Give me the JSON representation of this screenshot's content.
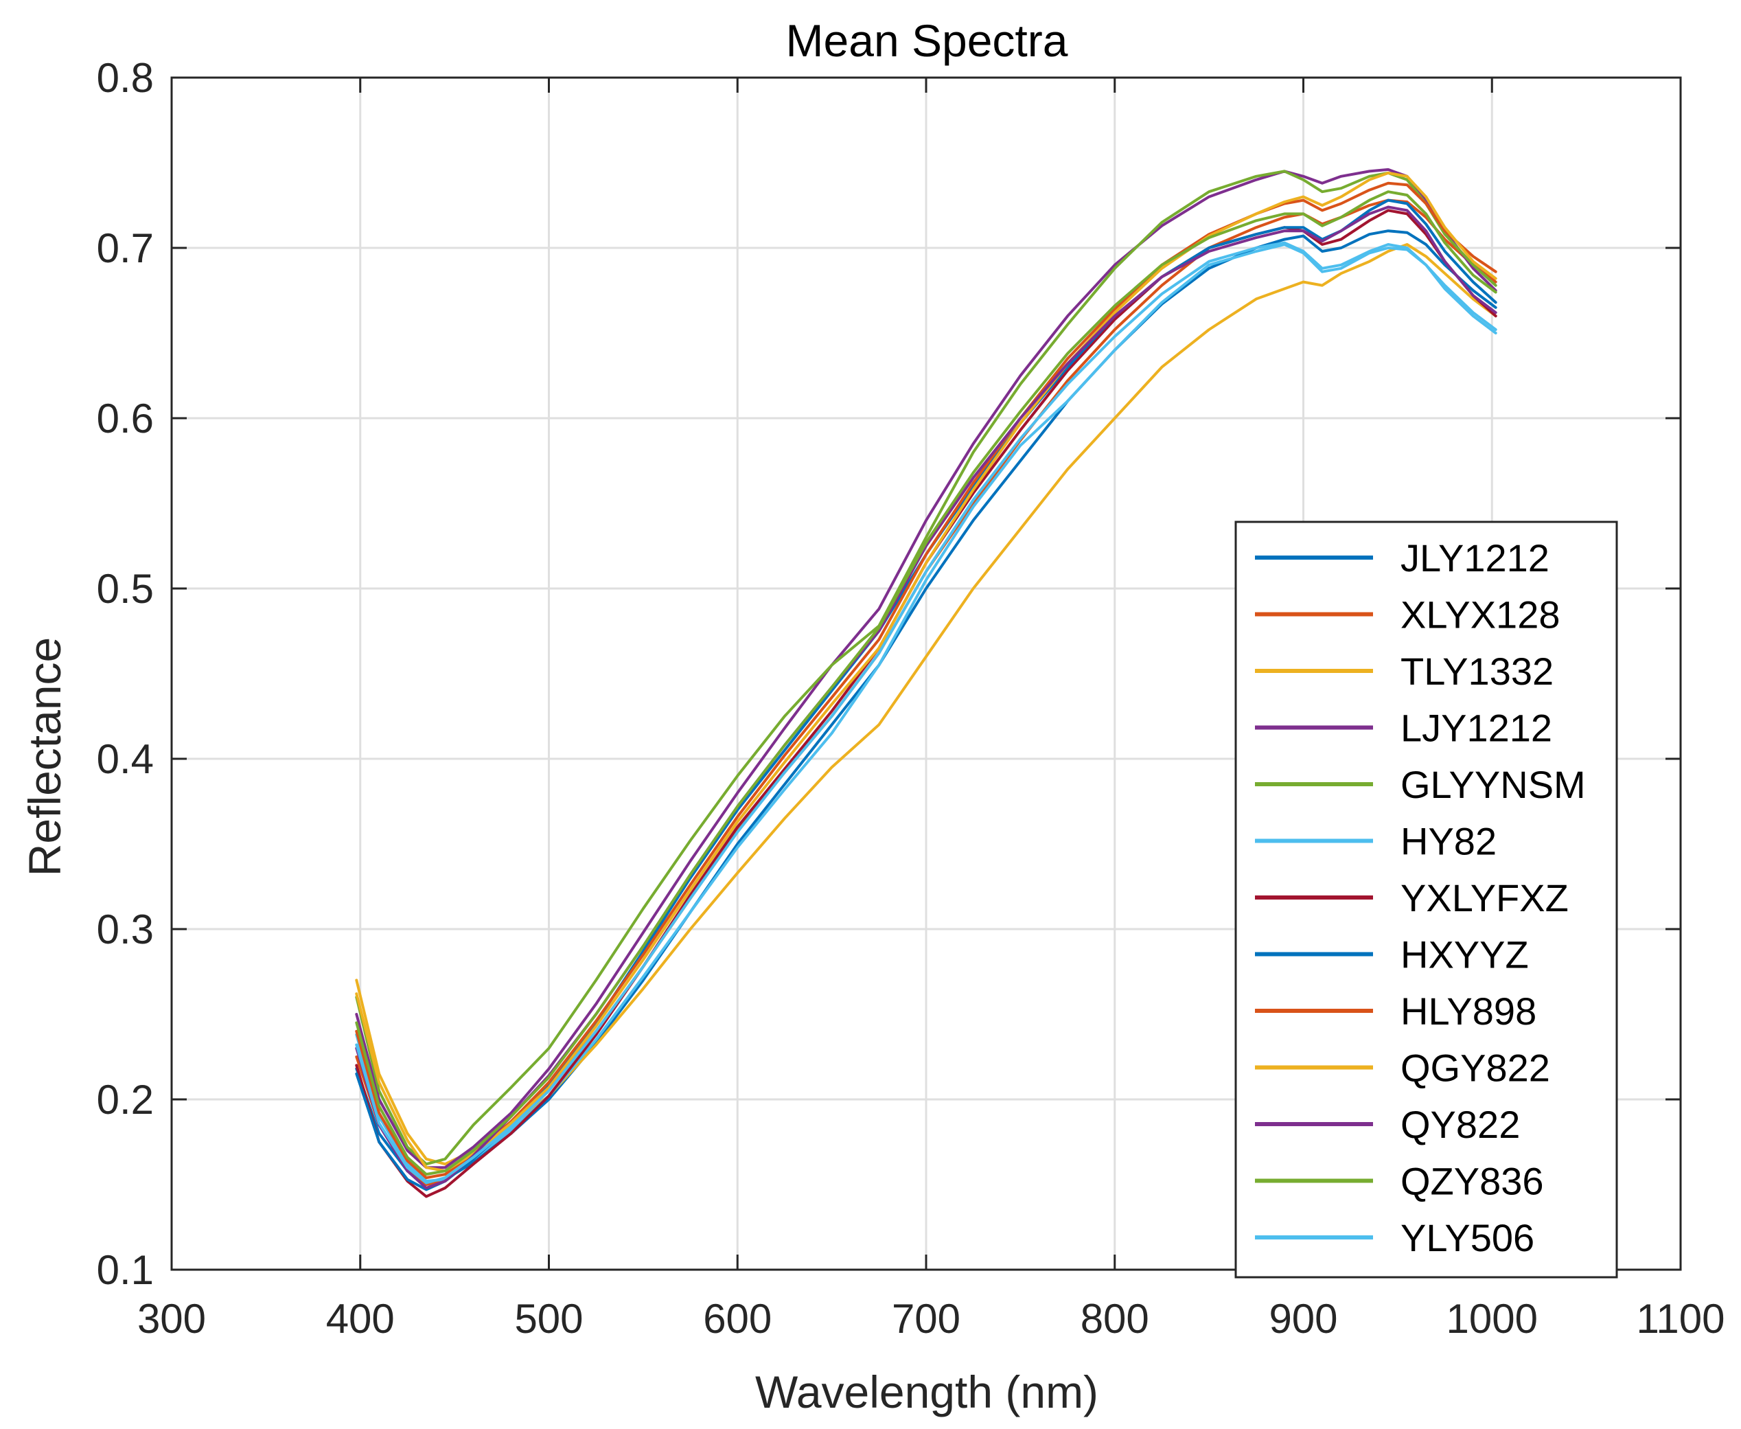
{
  "chart_data": {
    "type": "line",
    "title": "Mean Spectra",
    "xlabel": "Wavelength (nm)",
    "ylabel": "Reflectance",
    "xlim": [
      300,
      1100
    ],
    "ylim": [
      0.1,
      0.8
    ],
    "xticks": [
      300,
      400,
      500,
      600,
      700,
      800,
      900,
      1000,
      1100
    ],
    "xtick_labels": [
      "300",
      "400",
      "500",
      "600",
      "700",
      "800",
      "900",
      "1000",
      "1100"
    ],
    "yticks": [
      0.1,
      0.2,
      0.3,
      0.4,
      0.5,
      0.6,
      0.7,
      0.8
    ],
    "ytick_labels": [
      "0.1",
      "0.2",
      "0.3",
      "0.4",
      "0.5",
      "0.6",
      "0.7",
      "0.8"
    ],
    "grid": true,
    "legend_position": "right",
    "x": [
      398,
      410,
      425,
      435,
      445,
      460,
      480,
      500,
      525,
      550,
      575,
      600,
      625,
      650,
      675,
      700,
      725,
      750,
      775,
      800,
      825,
      850,
      875,
      890,
      900,
      910,
      920,
      935,
      945,
      955,
      965,
      975,
      990,
      1002
    ],
    "series": [
      {
        "name": "JLY1212",
        "color": "#0072BD",
        "values": [
          0.218,
          0.18,
          0.158,
          0.15,
          0.153,
          0.163,
          0.18,
          0.2,
          0.233,
          0.27,
          0.31,
          0.35,
          0.385,
          0.42,
          0.455,
          0.5,
          0.54,
          0.575,
          0.61,
          0.64,
          0.667,
          0.688,
          0.7,
          0.705,
          0.707,
          0.698,
          0.7,
          0.708,
          0.71,
          0.709,
          0.702,
          0.69,
          0.675,
          0.665
        ]
      },
      {
        "name": "XLYX128",
        "color": "#D95319",
        "values": [
          0.225,
          0.185,
          0.16,
          0.15,
          0.152,
          0.165,
          0.185,
          0.206,
          0.24,
          0.278,
          0.318,
          0.358,
          0.392,
          0.425,
          0.462,
          0.51,
          0.55,
          0.587,
          0.622,
          0.652,
          0.678,
          0.7,
          0.712,
          0.718,
          0.72,
          0.714,
          0.718,
          0.725,
          0.728,
          0.727,
          0.718,
          0.705,
          0.69,
          0.68
        ]
      },
      {
        "name": "TLY1332",
        "color": "#EDB120",
        "values": [
          0.27,
          0.215,
          0.18,
          0.165,
          0.162,
          0.17,
          0.185,
          0.202,
          0.232,
          0.265,
          0.3,
          0.333,
          0.365,
          0.395,
          0.42,
          0.46,
          0.5,
          0.535,
          0.57,
          0.6,
          0.63,
          0.652,
          0.67,
          0.676,
          0.68,
          0.678,
          0.685,
          0.692,
          0.698,
          0.702,
          0.695,
          0.685,
          0.67,
          0.66
        ]
      },
      {
        "name": "LJY1212",
        "color": "#7E2F8E",
        "values": [
          0.25,
          0.2,
          0.17,
          0.16,
          0.16,
          0.172,
          0.192,
          0.218,
          0.256,
          0.298,
          0.34,
          0.38,
          0.418,
          0.455,
          0.488,
          0.54,
          0.585,
          0.625,
          0.66,
          0.69,
          0.713,
          0.73,
          0.74,
          0.745,
          0.742,
          0.738,
          0.742,
          0.745,
          0.746,
          0.742,
          0.728,
          0.71,
          0.688,
          0.675
        ]
      },
      {
        "name": "GLYYNSM",
        "color": "#77AC30",
        "values": [
          0.26,
          0.205,
          0.172,
          0.162,
          0.165,
          0.185,
          0.207,
          0.23,
          0.27,
          0.312,
          0.352,
          0.39,
          0.425,
          0.455,
          0.478,
          0.53,
          0.58,
          0.62,
          0.655,
          0.688,
          0.715,
          0.733,
          0.742,
          0.745,
          0.74,
          0.733,
          0.735,
          0.742,
          0.744,
          0.74,
          0.726,
          0.708,
          0.69,
          0.678
        ]
      },
      {
        "name": "HY82",
        "color": "#4DBEEE",
        "values": [
          0.238,
          0.19,
          0.162,
          0.152,
          0.153,
          0.165,
          0.182,
          0.202,
          0.235,
          0.272,
          0.31,
          0.348,
          0.382,
          0.415,
          0.455,
          0.505,
          0.548,
          0.584,
          0.61,
          0.64,
          0.668,
          0.69,
          0.698,
          0.702,
          0.697,
          0.686,
          0.688,
          0.697,
          0.7,
          0.699,
          0.69,
          0.678,
          0.662,
          0.652
        ]
      },
      {
        "name": "YXLYFXZ",
        "color": "#A2142F",
        "values": [
          0.22,
          0.175,
          0.152,
          0.143,
          0.148,
          0.162,
          0.18,
          0.202,
          0.238,
          0.278,
          0.32,
          0.36,
          0.394,
          0.428,
          0.465,
          0.515,
          0.556,
          0.593,
          0.628,
          0.658,
          0.683,
          0.7,
          0.708,
          0.712,
          0.71,
          0.702,
          0.705,
          0.716,
          0.722,
          0.72,
          0.708,
          0.692,
          0.672,
          0.66
        ]
      },
      {
        "name": "HXYYZ",
        "color": "#0072BD",
        "values": [
          0.215,
          0.175,
          0.153,
          0.147,
          0.152,
          0.165,
          0.185,
          0.208,
          0.245,
          0.287,
          0.33,
          0.37,
          0.405,
          0.44,
          0.475,
          0.52,
          0.56,
          0.597,
          0.63,
          0.66,
          0.683,
          0.7,
          0.708,
          0.712,
          0.712,
          0.705,
          0.71,
          0.722,
          0.728,
          0.726,
          0.714,
          0.698,
          0.68,
          0.668
        ]
      },
      {
        "name": "HLY898",
        "color": "#D95319",
        "values": [
          0.24,
          0.192,
          0.164,
          0.154,
          0.156,
          0.168,
          0.187,
          0.21,
          0.246,
          0.285,
          0.326,
          0.366,
          0.402,
          0.436,
          0.47,
          0.52,
          0.562,
          0.6,
          0.635,
          0.664,
          0.69,
          0.708,
          0.72,
          0.726,
          0.728,
          0.722,
          0.726,
          0.734,
          0.738,
          0.737,
          0.726,
          0.71,
          0.695,
          0.686
        ]
      },
      {
        "name": "QGY822",
        "color": "#EDB120",
        "values": [
          0.262,
          0.21,
          0.176,
          0.16,
          0.158,
          0.168,
          0.186,
          0.207,
          0.243,
          0.282,
          0.323,
          0.363,
          0.398,
          0.432,
          0.465,
          0.515,
          0.558,
          0.597,
          0.632,
          0.662,
          0.688,
          0.707,
          0.72,
          0.727,
          0.73,
          0.725,
          0.73,
          0.74,
          0.744,
          0.742,
          0.73,
          0.712,
          0.692,
          0.682
        ]
      },
      {
        "name": "QY822",
        "color": "#7E2F8E",
        "values": [
          0.23,
          0.185,
          0.158,
          0.148,
          0.152,
          0.167,
          0.19,
          0.214,
          0.25,
          0.29,
          0.332,
          0.372,
          0.408,
          0.442,
          0.475,
          0.525,
          0.565,
          0.6,
          0.632,
          0.66,
          0.683,
          0.698,
          0.706,
          0.71,
          0.71,
          0.704,
          0.71,
          0.72,
          0.724,
          0.722,
          0.71,
          0.692,
          0.672,
          0.662
        ]
      },
      {
        "name": "QZY836",
        "color": "#77AC30",
        "values": [
          0.245,
          0.196,
          0.166,
          0.156,
          0.158,
          0.17,
          0.19,
          0.213,
          0.25,
          0.29,
          0.332,
          0.372,
          0.408,
          0.442,
          0.477,
          0.527,
          0.568,
          0.604,
          0.638,
          0.666,
          0.69,
          0.706,
          0.716,
          0.72,
          0.72,
          0.713,
          0.718,
          0.728,
          0.733,
          0.731,
          0.72,
          0.703,
          0.684,
          0.674
        ]
      },
      {
        "name": "YLY506",
        "color": "#4DBEEE",
        "values": [
          0.232,
          0.186,
          0.16,
          0.151,
          0.154,
          0.166,
          0.184,
          0.205,
          0.24,
          0.278,
          0.318,
          0.357,
          0.392,
          0.425,
          0.462,
          0.51,
          0.552,
          0.588,
          0.62,
          0.648,
          0.673,
          0.692,
          0.7,
          0.703,
          0.698,
          0.688,
          0.69,
          0.698,
          0.702,
          0.7,
          0.69,
          0.676,
          0.66,
          0.65
        ]
      }
    ]
  }
}
